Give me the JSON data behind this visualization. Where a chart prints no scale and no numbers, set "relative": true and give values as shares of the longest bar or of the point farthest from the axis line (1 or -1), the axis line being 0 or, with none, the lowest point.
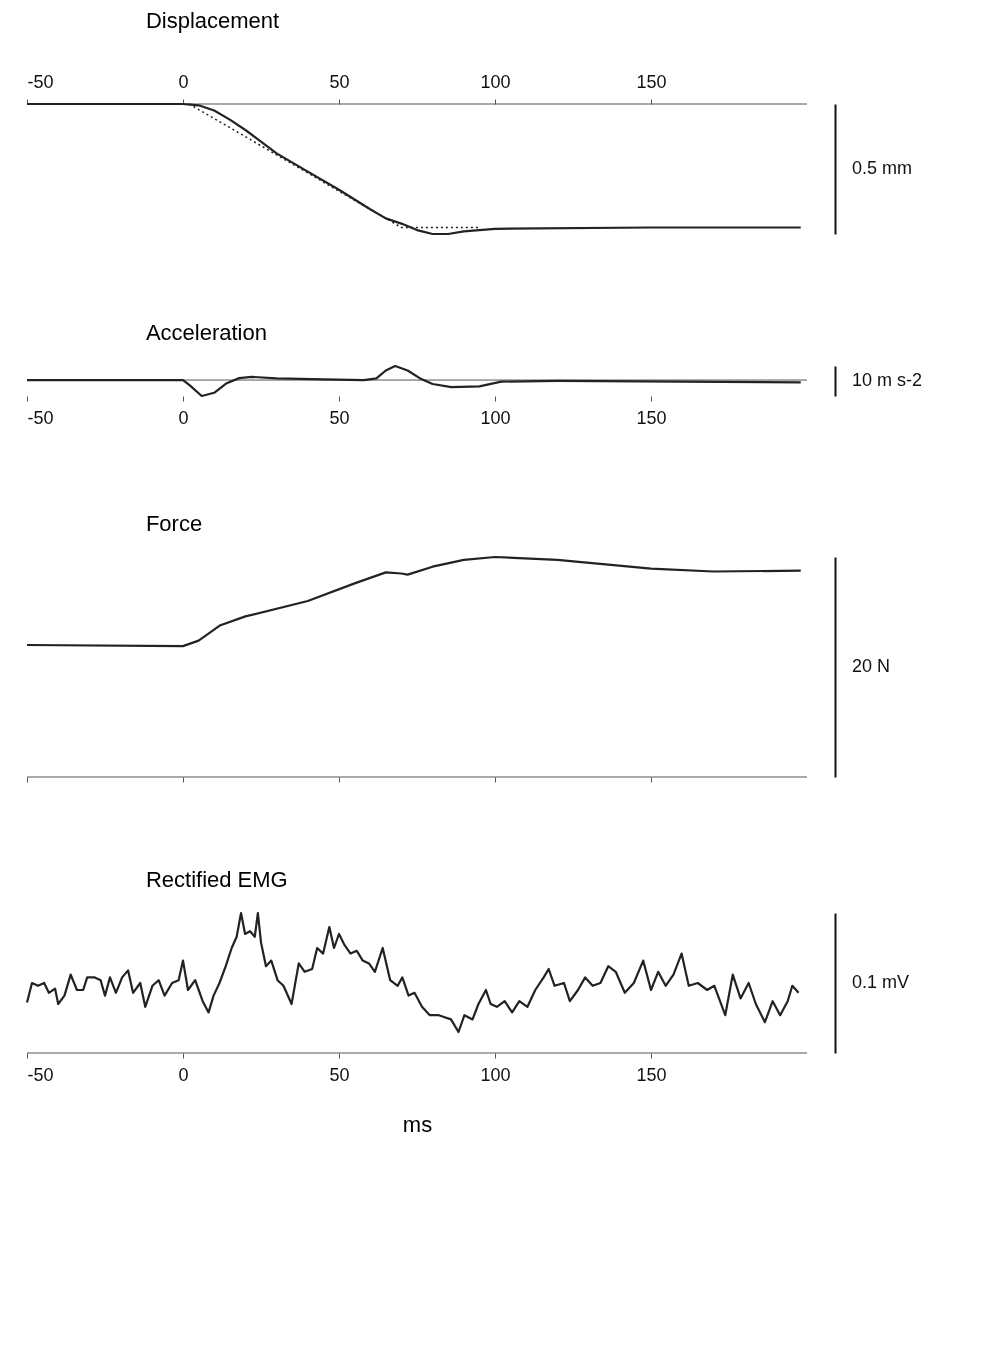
{
  "chart_data": [
    {
      "type": "line",
      "title": "Displacement",
      "ylabel": "0.5 mm",
      "relative": true,
      "xlim": [
        -50,
        200
      ],
      "xticks": [
        -50,
        0,
        50,
        100,
        150
      ],
      "tick_labels": "x",
      "series": [
        {
          "color": "#222222",
          "x": [
            -50,
            0,
            5,
            10,
            15,
            20,
            30,
            40,
            50,
            60,
            65,
            70,
            75,
            80,
            85,
            90,
            100,
            150,
            198
          ],
          "values": [
            0,
            0,
            -0.01,
            -0.05,
            -0.12,
            -0.2,
            -0.38,
            -0.52,
            -0.66,
            -0.81,
            -0.88,
            -0.92,
            -0.97,
            -1.0,
            -1.0,
            -0.98,
            -0.96,
            -0.95,
            -0.95
          ]
        },
        {
          "color": "#222222",
          "line_style": "dotted",
          "x": [
            2,
            70,
            95
          ],
          "values": [
            0,
            -0.95,
            -0.95
          ]
        }
      ]
    },
    {
      "type": "line",
      "title": "Acceleration",
      "ylabel": "10 m s-2",
      "relative": true,
      "xlim": [
        -50,
        200
      ],
      "xticks": [
        -50,
        0,
        50,
        100,
        150
      ],
      "tick_labels": "x",
      "series": [
        {
          "color": "#222222",
          "x": [
            -50,
            0,
            2,
            6,
            10,
            14,
            18,
            22,
            30,
            45,
            58,
            62,
            65,
            68,
            72,
            76,
            80,
            86,
            95,
            102,
            120,
            198
          ],
          "values": [
            0,
            0,
            -0.3,
            -1.0,
            -0.8,
            -0.2,
            0.12,
            0.2,
            0.1,
            0.04,
            0.0,
            0.1,
            0.6,
            0.88,
            0.6,
            0.1,
            -0.25,
            -0.44,
            -0.4,
            -0.1,
            -0.05,
            -0.15
          ]
        }
      ]
    },
    {
      "type": "line",
      "title": "Force",
      "ylabel": "20 N",
      "relative": true,
      "xlim": [
        -50,
        200
      ],
      "xticks": [
        -50,
        0,
        50,
        100,
        150
      ],
      "tick_labels": false,
      "series": [
        {
          "color": "#222222",
          "x": [
            -50,
            0,
            5,
            12,
            20,
            40,
            55,
            65,
            70,
            72,
            80,
            90,
            100,
            120,
            150,
            170,
            198
          ],
          "values": [
            0.6,
            0.595,
            0.62,
            0.69,
            0.73,
            0.8,
            0.88,
            0.93,
            0.925,
            0.92,
            0.956,
            0.987,
            1.0,
            0.987,
            0.947,
            0.934,
            0.938
          ]
        }
      ]
    },
    {
      "type": "line",
      "title": "Rectified EMG",
      "ylabel": "0.1 mV",
      "xlabel": "ms",
      "relative": true,
      "xlim": [
        -50,
        200
      ],
      "xticks": [
        -50,
        0,
        50,
        100,
        150
      ],
      "tick_labels": "x",
      "series": [
        {
          "color": "#222222",
          "x": [
            -50,
            -48.4,
            -46.5,
            -44.5,
            -43,
            -41,
            -40,
            -38,
            -36,
            -34,
            -32,
            -30.7,
            -28.3,
            -26.4,
            -25,
            -23.4,
            -21.5,
            -19.5,
            -17.6,
            -16,
            -13.7,
            -12.1,
            -9.8,
            -7.8,
            -5.9,
            -3.5,
            -1.4,
            0,
            1.6,
            3.9,
            6.3,
            8.2,
            9.8,
            11.7,
            13.7,
            15.6,
            17.2,
            18.6,
            19.9,
            21.5,
            23,
            24,
            25,
            26.6,
            28.3,
            30.3,
            32.2,
            34.8,
            37.1,
            39,
            41.4,
            43,
            44.9,
            46.9,
            48.4,
            50,
            51.8,
            53.7,
            55.7,
            57.6,
            59.6,
            61.5,
            64,
            66.4,
            68.8,
            70.3,
            72.3,
            74.2,
            76.6,
            79.1,
            82,
            85.9,
            88.3,
            90.2,
            92.8,
            94.7,
            97.1,
            98.6,
            100.6,
            103.1,
            105.5,
            107.8,
            110.4,
            112.9,
            115.6,
            117.2,
            119.1,
            122.1,
            124,
            126.6,
            128.9,
            131.3,
            133.8,
            136.3,
            138.7,
            141.6,
            144.5,
            147.5,
            150,
            152.3,
            154.7,
            157.2,
            159.8,
            162.1,
            165,
            168,
            170.3,
            173.8,
            176.2,
            178.7,
            181.3,
            183.6,
            186.5,
            189,
            191.4,
            193.8,
            195.3,
            197.3
          ],
          "values": [
            0.36,
            0.5,
            0.48,
            0.5,
            0.43,
            0.46,
            0.35,
            0.41,
            0.56,
            0.45,
            0.45,
            0.54,
            0.54,
            0.52,
            0.41,
            0.54,
            0.43,
            0.54,
            0.59,
            0.43,
            0.5,
            0.33,
            0.48,
            0.52,
            0.41,
            0.5,
            0.52,
            0.66,
            0.45,
            0.52,
            0.37,
            0.29,
            0.41,
            0.5,
            0.62,
            0.75,
            0.83,
            1.0,
            0.85,
            0.87,
            0.83,
            1.0,
            0.79,
            0.62,
            0.66,
            0.52,
            0.48,
            0.35,
            0.64,
            0.58,
            0.6,
            0.75,
            0.71,
            0.9,
            0.75,
            0.85,
            0.77,
            0.71,
            0.73,
            0.66,
            0.64,
            0.58,
            0.75,
            0.52,
            0.48,
            0.54,
            0.41,
            0.43,
            0.33,
            0.27,
            0.27,
            0.24,
            0.15,
            0.27,
            0.24,
            0.35,
            0.45,
            0.35,
            0.33,
            0.37,
            0.29,
            0.37,
            0.33,
            0.45,
            0.54,
            0.6,
            0.48,
            0.5,
            0.37,
            0.45,
            0.54,
            0.48,
            0.5,
            0.62,
            0.58,
            0.43,
            0.5,
            0.66,
            0.45,
            0.58,
            0.48,
            0.56,
            0.71,
            0.48,
            0.5,
            0.45,
            0.48,
            0.27,
            0.56,
            0.39,
            0.5,
            0.35,
            0.22,
            0.37,
            0.27,
            0.37,
            0.48,
            0.43
          ]
        }
      ]
    }
  ]
}
